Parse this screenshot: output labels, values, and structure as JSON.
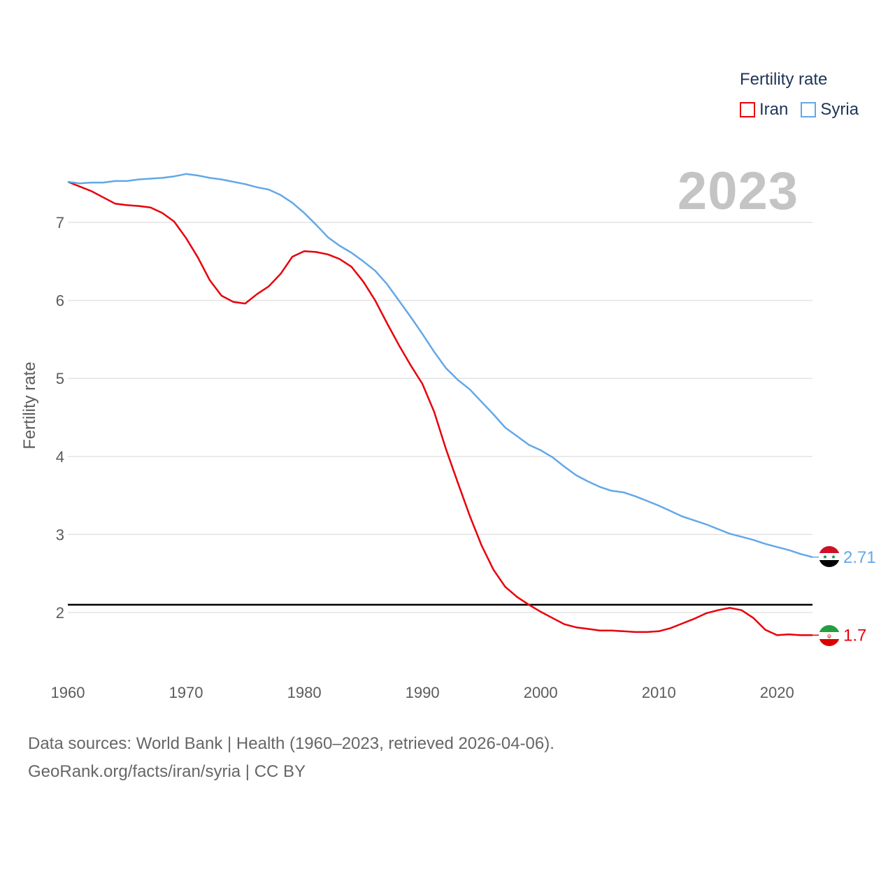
{
  "legend": {
    "title": "Fertility rate",
    "items": [
      {
        "label": "Iran",
        "color": "#e8000b"
      },
      {
        "label": "Syria",
        "color": "#62a8e8"
      }
    ]
  },
  "year_display": "2023",
  "footer": {
    "sources": "Data sources: World Bank | Health (1960–2023, retrieved 2026-04-06).",
    "link": "GeoRank.org/facts/iran/syria | CC BY"
  },
  "flags": {
    "iran": "iran-flag-icon",
    "syria": "syria-flag-icon"
  },
  "chart_data": {
    "type": "line",
    "title": "",
    "xlabel": "",
    "ylabel": "Fertility rate",
    "xlim": [
      1960,
      2023
    ],
    "ylim": [
      1.2,
      7.8
    ],
    "x_ticks": [
      1960,
      1970,
      1980,
      1990,
      2000,
      2010,
      2020
    ],
    "y_ticks": [
      2,
      3,
      4,
      5,
      6,
      7
    ],
    "reference_line": {
      "value": 2.1,
      "color": "#000000"
    },
    "x": [
      1960,
      1961,
      1962,
      1963,
      1964,
      1965,
      1966,
      1967,
      1968,
      1969,
      1970,
      1971,
      1972,
      1973,
      1974,
      1975,
      1976,
      1977,
      1978,
      1979,
      1980,
      1981,
      1982,
      1983,
      1984,
      1985,
      1986,
      1987,
      1988,
      1989,
      1990,
      1991,
      1992,
      1993,
      1994,
      1995,
      1996,
      1997,
      1998,
      1999,
      2000,
      2001,
      2002,
      2003,
      2004,
      2005,
      2006,
      2007,
      2008,
      2009,
      2010,
      2011,
      2012,
      2013,
      2014,
      2015,
      2016,
      2017,
      2018,
      2019,
      2020,
      2021,
      2022,
      2023
    ],
    "series": [
      {
        "name": "Iran",
        "color": "#e8000b",
        "end_label": "1.7",
        "values": [
          7.52,
          7.46,
          7.4,
          7.32,
          7.24,
          7.22,
          7.21,
          7.19,
          7.12,
          7.01,
          6.8,
          6.55,
          6.26,
          6.06,
          5.98,
          5.96,
          6.08,
          6.18,
          6.34,
          6.56,
          6.63,
          6.62,
          6.59,
          6.53,
          6.43,
          6.24,
          6.0,
          5.71,
          5.43,
          5.17,
          4.93,
          4.57,
          4.09,
          3.66,
          3.24,
          2.86,
          2.55,
          2.33,
          2.2,
          2.1,
          2.01,
          1.93,
          1.85,
          1.81,
          1.79,
          1.77,
          1.77,
          1.76,
          1.75,
          1.75,
          1.76,
          1.8,
          1.86,
          1.92,
          1.99,
          2.03,
          2.06,
          2.03,
          1.93,
          1.78,
          1.71,
          1.72,
          1.71,
          1.71
        ]
      },
      {
        "name": "Syria",
        "color": "#62a8e8",
        "end_label": "2.71",
        "values": [
          7.52,
          7.5,
          7.51,
          7.51,
          7.53,
          7.53,
          7.55,
          7.56,
          7.57,
          7.59,
          7.62,
          7.6,
          7.57,
          7.55,
          7.52,
          7.49,
          7.45,
          7.42,
          7.35,
          7.25,
          7.12,
          6.97,
          6.81,
          6.7,
          6.61,
          6.5,
          6.38,
          6.21,
          6.0,
          5.79,
          5.57,
          5.34,
          5.13,
          4.98,
          4.86,
          4.7,
          4.54,
          4.37,
          4.26,
          4.15,
          4.08,
          3.99,
          3.87,
          3.76,
          3.68,
          3.61,
          3.56,
          3.54,
          3.49,
          3.43,
          3.37,
          3.3,
          3.23,
          3.18,
          3.13,
          3.07,
          3.01,
          2.97,
          2.93,
          2.88,
          2.84,
          2.8,
          2.75,
          2.71
        ]
      }
    ]
  }
}
